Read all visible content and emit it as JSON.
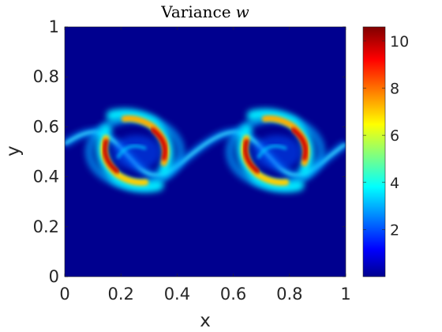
{
  "chart_data": {
    "type": "heatmap",
    "title": "Variance",
    "title_variable": "w",
    "xlabel": "x",
    "ylabel": "y",
    "xlim": [
      0,
      1
    ],
    "ylim": [
      0,
      1
    ],
    "x_ticks": [
      "0",
      "0.2",
      "0.4",
      "0.6",
      "0.8",
      "1"
    ],
    "y_ticks": [
      "0",
      "0.2",
      "0.4",
      "0.6",
      "0.8",
      "1"
    ],
    "colorbar": {
      "colormap": "jet",
      "range": [
        0,
        10.6
      ],
      "ticks": [
        "2",
        "4",
        "6",
        "8",
        "10"
      ]
    },
    "background_value": 0.05,
    "features": [
      {
        "kind": "interface-band",
        "description": "thin sinusoidal shear layer along y = 0.5, value ~3.5"
      },
      {
        "kind": "vortex-arm",
        "center_x": 0.13,
        "center_y": 0.46,
        "peak": 10.5
      },
      {
        "kind": "vortex-arm",
        "center_x": 0.37,
        "center_y": 0.55,
        "peak": 9.5
      },
      {
        "kind": "vortex-arm",
        "center_x": 0.64,
        "center_y": 0.46,
        "peak": 10.5
      },
      {
        "kind": "vortex-arm",
        "center_x": 0.87,
        "center_y": 0.55,
        "peak": 9.5
      }
    ]
  }
}
